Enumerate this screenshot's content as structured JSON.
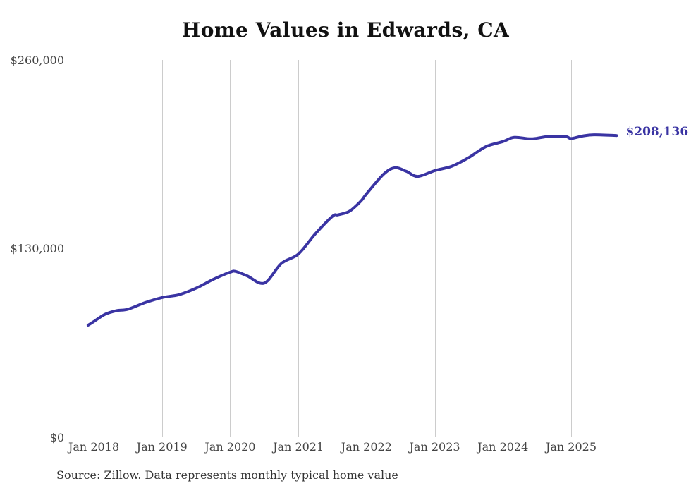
{
  "page": {
    "title": "Home Values in Edwards, CA",
    "source_note": "Source: Zillow. Data represents monthly typical home value"
  },
  "colors": {
    "line": "#3a34a3",
    "grid": "#cccccc",
    "tick_label": "#444444",
    "title_text": "#111111",
    "source_text": "#333333",
    "background": "#ffffff"
  },
  "end_label": {
    "text": "$208,136"
  },
  "chart_data": {
    "type": "line",
    "title": "Home Values in Edwards, CA",
    "series_name": "Monthly typical home value",
    "unit": "USD",
    "x": [
      "2017-12",
      "2018-01",
      "2018-03",
      "2018-05",
      "2018-07",
      "2018-10",
      "2019-01",
      "2019-04",
      "2019-07",
      "2019-10",
      "2020-01",
      "2020-02",
      "2020-04",
      "2020-07",
      "2020-10",
      "2021-01",
      "2021-04",
      "2021-07",
      "2021-08",
      "2021-10",
      "2021-12",
      "2022-01",
      "2022-04",
      "2022-06",
      "2022-08",
      "2022-10",
      "2023-01",
      "2023-04",
      "2023-07",
      "2023-10",
      "2024-01",
      "2024-03",
      "2024-06",
      "2024-09",
      "2024-12",
      "2025-01",
      "2025-03",
      "2025-05",
      "2025-09"
    ],
    "values": [
      77500,
      80000,
      85000,
      87500,
      88500,
      93000,
      96500,
      98500,
      103000,
      109000,
      114000,
      114500,
      111500,
      106500,
      120000,
      126500,
      140500,
      152500,
      153500,
      156000,
      163000,
      168000,
      181500,
      186000,
      183500,
      180000,
      184000,
      187000,
      193000,
      200500,
      204000,
      206900,
      205900,
      207500,
      207500,
      206100,
      207800,
      208700,
      208136
    ],
    "final_value": 208136,
    "final_value_label": "$208,136",
    "ylim": [
      0,
      260000
    ],
    "y_ticks": [
      {
        "label": "$260,000",
        "value": 260000
      },
      {
        "label": "$130,000",
        "value": 130000
      },
      {
        "label": "$0",
        "value": 0
      }
    ],
    "x_ticks": [
      {
        "label": "Jan 2018",
        "year": 2018
      },
      {
        "label": "Jan 2019",
        "year": 2019
      },
      {
        "label": "Jan 2020",
        "year": 2020
      },
      {
        "label": "Jan 2021",
        "year": 2021
      },
      {
        "label": "Jan 2022",
        "year": 2022
      },
      {
        "label": "Jan 2023",
        "year": 2023
      },
      {
        "label": "Jan 2024",
        "year": 2024
      },
      {
        "label": "Jan 2025",
        "year": 2025
      }
    ],
    "grid": "vertical-yearly",
    "legend": "none"
  }
}
